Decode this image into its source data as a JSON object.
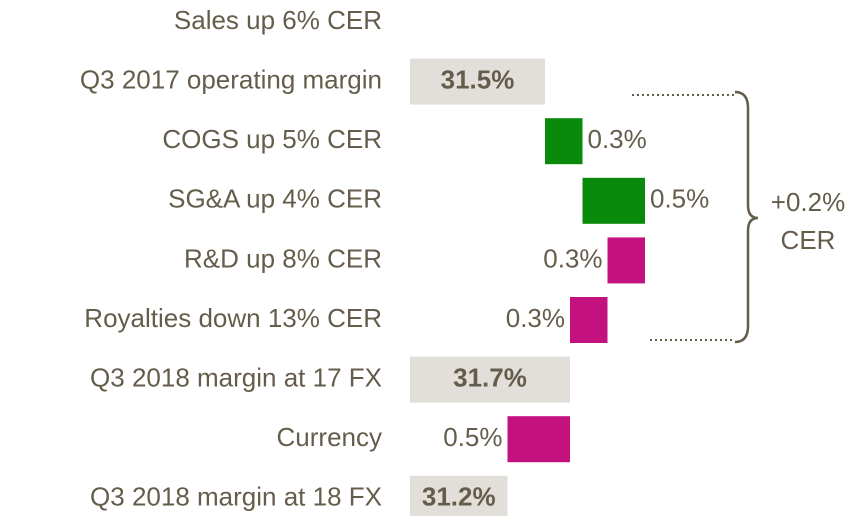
{
  "chart_data": {
    "type": "waterfall",
    "categories": [
      "Sales up 6% CER",
      "Q3 2017 operating margin",
      "COGS up 5% CER",
      "SG&A up 4% CER",
      "R&D up 8% CER",
      "Royalties down 13% CER",
      "Q3 2018 margin at 17 FX",
      "Currency",
      "Q3 2018 margin at 18 FX"
    ],
    "measure": [
      null,
      "total",
      "relative",
      "relative",
      "relative",
      "relative",
      "total",
      "relative",
      "total"
    ],
    "values": [
      null,
      31.5,
      0.3,
      0.5,
      -0.3,
      -0.3,
      31.7,
      -0.5,
      31.2
    ],
    "value_labels": [
      null,
      "31.5%",
      "0.3%",
      "0.5%",
      "0.3%",
      "0.3%",
      "31.7%",
      "0.5%",
      "31.2%"
    ],
    "colors": {
      "total": "#e2deda",
      "increase": "#0a8a0a",
      "decrease": "#c3127f"
    },
    "xlim": [
      30.42,
      32.9
    ],
    "annotation": [
      "+0.2%",
      "CER"
    ]
  }
}
